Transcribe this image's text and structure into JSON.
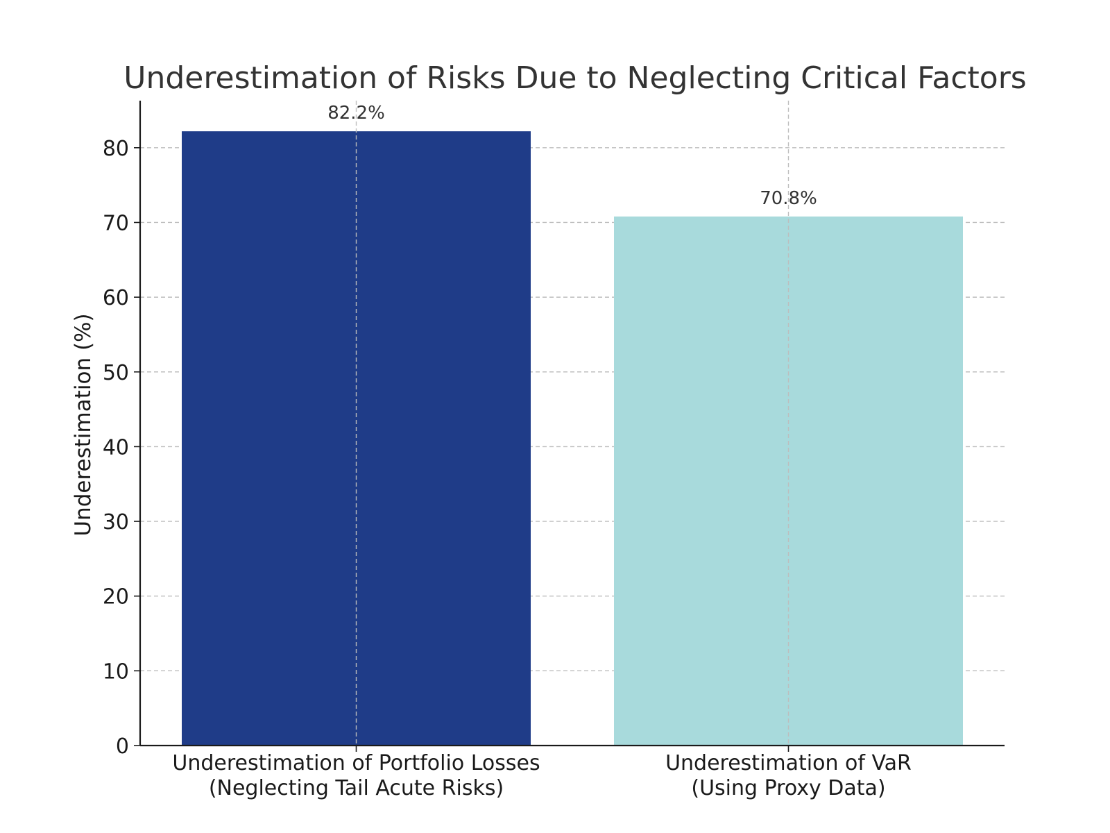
{
  "chart_data": {
    "type": "bar",
    "title": "Underestimation of Risks Due to Neglecting Critical Factors",
    "xlabel": "",
    "ylabel": "Underestimation (%)",
    "categories": [
      [
        "Underestimation of Portfolio Losses",
        "(Neglecting Tail Acute Risks)"
      ],
      [
        "Underestimation of VaR",
        "(Using Proxy Data)"
      ]
    ],
    "values": [
      82.2,
      70.8
    ],
    "value_labels": [
      "82.2%",
      "70.8%"
    ],
    "colors": [
      "#1f3c88",
      "#a8dadc"
    ],
    "ylim": [
      0,
      86.3
    ],
    "yticks": [
      0,
      10,
      20,
      30,
      40,
      50,
      60,
      70,
      80
    ],
    "grid": true,
    "legend": "none"
  }
}
